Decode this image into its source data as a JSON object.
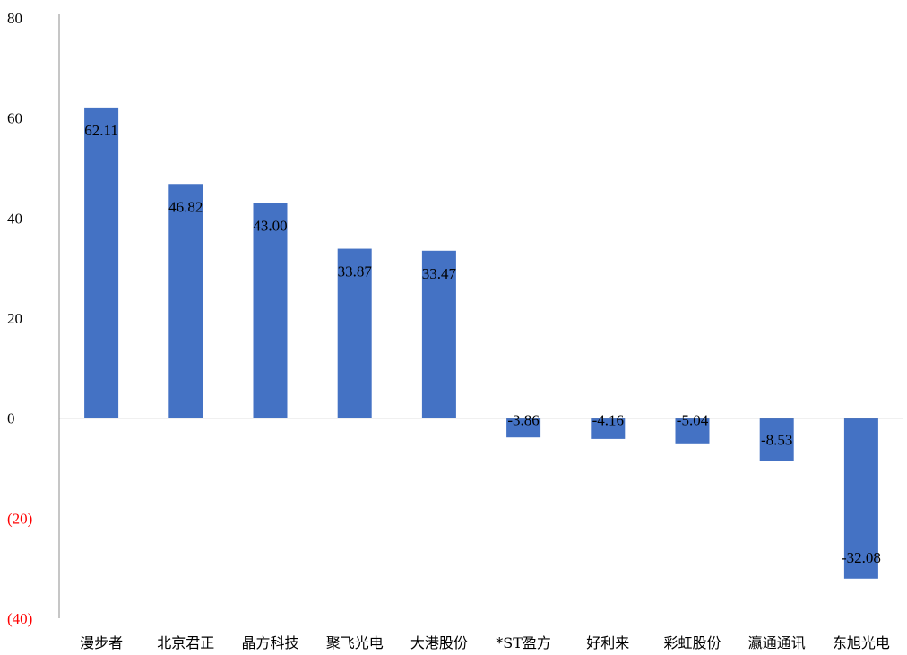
{
  "chart_data": {
    "type": "bar",
    "categories": [
      "漫步者",
      "北京君正",
      "晶方科技",
      "聚飞光电",
      "大港股份",
      "*ST盈方",
      "好利来",
      "彩虹股份",
      "瀛通通讯",
      "东旭光电"
    ],
    "values": [
      62.11,
      46.82,
      43.0,
      33.87,
      33.47,
      -3.86,
      -4.16,
      -5.04,
      -8.53,
      -32.08
    ],
    "data_labels": [
      "62.11",
      "46.82",
      "43.00",
      "33.87",
      "33.47",
      "-3.86",
      "-4.16",
      "-5.04",
      "-8.53",
      "-32.08"
    ],
    "ylim": [
      -40,
      80
    ],
    "yticks": [
      80,
      60,
      40,
      20,
      0,
      -20,
      -40
    ],
    "ytick_labels": [
      "80",
      "60",
      "40",
      "20",
      "0",
      "(20)",
      "(40)"
    ],
    "title": "",
    "xlabel": "",
    "ylabel": "",
    "grid": false,
    "legend": "none",
    "colors": {
      "bar": "#4472C4",
      "axis": "#8c8c8c",
      "tick_positive": "#000000",
      "tick_negative": "#ff0000"
    }
  }
}
